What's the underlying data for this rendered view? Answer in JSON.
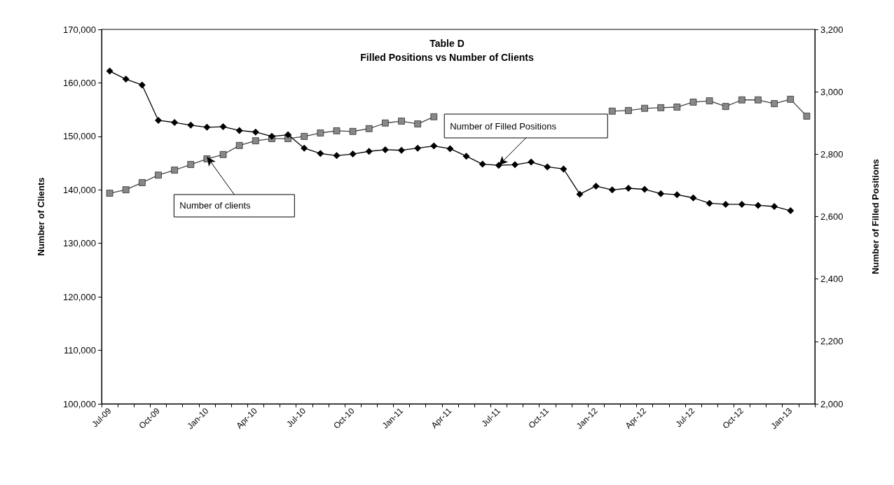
{
  "chart_data": {
    "type": "line",
    "title": "Table D",
    "subtitle": "Filled Positions vs Number of Clients",
    "ylabel": "Number of Clients",
    "y2label": "Number of Filled Positions",
    "categories": [
      "Jul-09",
      null,
      null,
      "Oct-09",
      null,
      null,
      "Jan-10",
      null,
      null,
      "Apr-10",
      null,
      null,
      "Jul-10",
      null,
      null,
      "Oct-10",
      null,
      null,
      "Jan-11",
      null,
      null,
      "Apr-11",
      null,
      null,
      "Jul-11",
      null,
      null,
      "Oct-11",
      null,
      null,
      "Jan-12",
      null,
      null,
      "Apr-12",
      null,
      null,
      "Jul-12",
      null,
      null,
      "Oct-12",
      null,
      null,
      "Jan-13",
      null
    ],
    "series": [
      {
        "color": "#000000",
        "marker": "diamond",
        "values": [
          162200,
          160700,
          159600,
          153000,
          152600,
          152100,
          151700,
          151800,
          151100,
          150800,
          150000,
          150300,
          147800,
          146800,
          146400,
          146700,
          147200,
          147500,
          147400,
          147800,
          148200,
          147700,
          146300,
          144800,
          144600,
          144700,
          145200,
          144300,
          143900,
          139200,
          140700,
          140000,
          140300,
          140100,
          139300,
          139100,
          138500,
          137500,
          137300,
          137300,
          137100,
          136900,
          136100,
          null
        ]
      },
      {
        "color": "#888888",
        "marker": "square",
        "axis": "y2",
        "values": [
          2675,
          2686,
          2709,
          2733,
          2749,
          2767,
          2785,
          2799,
          2828,
          2843,
          2850,
          2850,
          2857,
          2868,
          2875,
          2873,
          2882,
          2900,
          2906,
          2897,
          2920,
          null,
          null,
          null,
          null,
          null,
          null,
          null,
          null,
          null,
          null,
          2938,
          2940,
          2947,
          2949,
          2951,
          2967,
          2971,
          2953,
          2974,
          2974,
          2962,
          2976,
          2922
        ]
      }
    ],
    "ylim": [
      100000,
      170000
    ],
    "yticks": [
      {
        "value": 100000,
        "label": "100,000"
      },
      {
        "value": 110000,
        "label": "110,000"
      },
      {
        "value": 120000,
        "label": "120,000"
      },
      {
        "value": 130000,
        "label": "130,000"
      },
      {
        "value": 140000,
        "label": "140,000"
      },
      {
        "value": 150000,
        "label": "150,000"
      },
      {
        "value": 160000,
        "label": "160,000"
      },
      {
        "value": 170000,
        "label": "170,000"
      }
    ],
    "y2lim": [
      2000,
      3200
    ],
    "y2ticks": [
      {
        "value": 2000,
        "label": "2,000"
      },
      {
        "value": 2200,
        "label": "2,200"
      },
      {
        "value": 2400,
        "label": "2,400"
      },
      {
        "value": 2600,
        "label": "2,600"
      },
      {
        "value": 2800,
        "label": "2,800"
      },
      {
        "value": 3000,
        "label": "3,000"
      },
      {
        "value": 3200,
        "label": "3,200"
      }
    ],
    "annotations": [
      {
        "text": "Number of clients",
        "x": "Jan-10",
        "y": 146200
      },
      {
        "text": "Number of Filled Positions",
        "x": "Jul-11",
        "y": 144600
      }
    ],
    "grid": false,
    "line_style": "solid"
  }
}
